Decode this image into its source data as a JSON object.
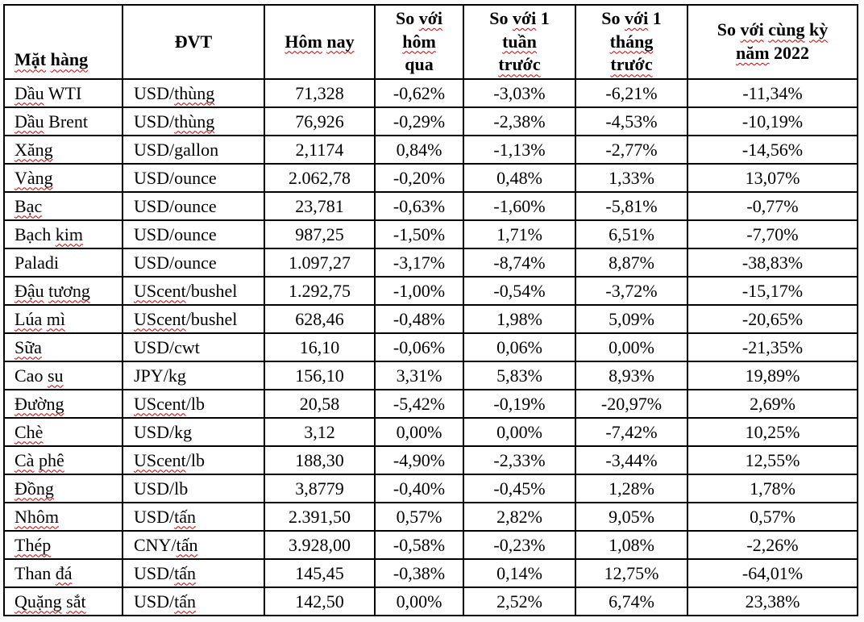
{
  "table": {
    "headers": [
      "Mặt hàng",
      "ĐVT",
      "Hôm nay",
      "So với\nhôm\nqua",
      "So với 1\ntuần\ntrước",
      "So với 1\ntháng\ntrước",
      "So với cùng kỳ\nnăm 2022"
    ],
    "rows": [
      [
        "Dầu WTI",
        "USD/thùng",
        "71,328",
        "-0,62%",
        "-3,03%",
        "-6,21%",
        "-11,34%"
      ],
      [
        "Dầu Brent",
        "USD/thùng",
        "76,926",
        "-0,29%",
        "-2,38%",
        "-4,53%",
        "-10,19%"
      ],
      [
        "Xăng",
        "USD/gallon",
        "2,1174",
        "0,84%",
        "-1,13%",
        "-2,77%",
        "-14,56%"
      ],
      [
        "Vàng",
        "USD/ounce",
        "2.062,78",
        "-0,20%",
        "0,48%",
        "1,33%",
        "13,07%"
      ],
      [
        "Bạc",
        "USD/ounce",
        "23,781",
        "-0,63%",
        "-1,60%",
        "-5,81%",
        "-0,77%"
      ],
      [
        "Bạch kim",
        "USD/ounce",
        "987,25",
        "-1,50%",
        "1,71%",
        "6,51%",
        "-7,70%"
      ],
      [
        "Paladi",
        "USD/ounce",
        "1.097,27",
        "-3,17%",
        "-8,74%",
        "8,87%",
        "-38,83%"
      ],
      [
        "Đậu tương",
        "UScent/bushel",
        "1.292,75",
        "-1,00%",
        "-0,54%",
        "-3,72%",
        "-15,17%"
      ],
      [
        "Lúa mì",
        "UScent/bushel",
        "628,46",
        "-0,48%",
        "1,98%",
        "5,09%",
        "-20,65%"
      ],
      [
        "Sữa",
        "USD/cwt",
        "16,10",
        "-0,06%",
        "0,06%",
        "0,00%",
        "-21,35%"
      ],
      [
        "Cao su",
        "JPY/kg",
        "156,10",
        "3,31%",
        "5,83%",
        "8,93%",
        "19,89%"
      ],
      [
        "Đường",
        "UScent/lb",
        "20,58",
        "-5,42%",
        "-0,19%",
        "-20,97%",
        "2,69%"
      ],
      [
        "Chè",
        "USD/kg",
        "3,12",
        "0,00%",
        "0,00%",
        "-7,42%",
        "10,25%"
      ],
      [
        "Cà phê",
        "UScent/lb",
        "188,30",
        "-4,90%",
        "-2,33%",
        "-3,44%",
        "12,55%"
      ],
      [
        "Đồng",
        "USD/lb",
        "3,8779",
        "-0,40%",
        "-0,45%",
        "1,28%",
        "1,78%"
      ],
      [
        "Nhôm",
        "USD/tấn",
        "2.391,50",
        "0,57%",
        "2,82%",
        "9,05%",
        "0,57%"
      ],
      [
        "Thép",
        "CNY/tấn",
        "3.928,00",
        "-0,58%",
        "-0,23%",
        "1,08%",
        "-2,26%"
      ],
      [
        "Than đá",
        "USD/tấn",
        "145,45",
        "-0,38%",
        "0,14%",
        "12,75%",
        "-64,01%"
      ],
      [
        "Quặng sắt",
        "USD/tấn",
        "142,50",
        "0,00%",
        "2,52%",
        "6,74%",
        "23,38%"
      ]
    ]
  },
  "spellcheck": {
    "underline_color": "#cc0000",
    "flagged_words": [
      "Mặt",
      "hàng",
      "Hôm",
      "nay",
      "với",
      "hôm",
      "tuần",
      "trước",
      "tháng",
      "cùng",
      "kỳ",
      "năm",
      "Dầu",
      "Xăng",
      "Vàng",
      "Bạc",
      "kim",
      "Đậu",
      "tương",
      "Lúa",
      "mì",
      "Sữa",
      "su",
      "Đường",
      "Chè",
      "Cà",
      "phê",
      "Đồng",
      "Nhôm",
      "Thép",
      "đá",
      "Quặng",
      "sắt",
      "thùng",
      "UScent",
      "tấn"
    ]
  },
  "colors": {
    "border": "#000000",
    "text": "#000000",
    "background": "#ffffff"
  }
}
